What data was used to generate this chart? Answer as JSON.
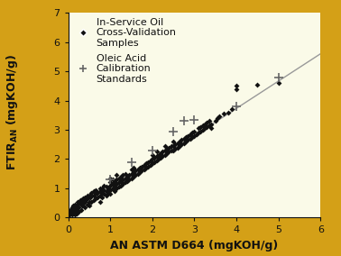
{
  "background_outer": "#D4A017",
  "background_inner": "#FAFAE8",
  "xlabel": "AN ASTM D664 (mgKOH/g)",
  "xlim": [
    0,
    6
  ],
  "ylim": [
    0,
    7
  ],
  "xticks": [
    0,
    1,
    2,
    3,
    4,
    5,
    6
  ],
  "yticks": [
    0,
    1,
    2,
    3,
    4,
    5,
    6,
    7
  ],
  "fit_line_x": [
    0,
    6
  ],
  "fit_line_y": [
    0,
    5.6
  ],
  "scatter_points": [
    [
      0.02,
      0.1
    ],
    [
      0.03,
      0.12
    ],
    [
      0.05,
      0.18
    ],
    [
      0.05,
      0.25
    ],
    [
      0.06,
      0.2
    ],
    [
      0.07,
      0.22
    ],
    [
      0.08,
      0.15
    ],
    [
      0.08,
      0.3
    ],
    [
      0.09,
      0.2
    ],
    [
      0.1,
      0.1
    ],
    [
      0.1,
      0.25
    ],
    [
      0.1,
      0.35
    ],
    [
      0.12,
      0.3
    ],
    [
      0.12,
      0.4
    ],
    [
      0.13,
      0.2
    ],
    [
      0.15,
      0.1
    ],
    [
      0.15,
      0.35
    ],
    [
      0.15,
      0.45
    ],
    [
      0.17,
      0.3
    ],
    [
      0.18,
      0.38
    ],
    [
      0.2,
      0.15
    ],
    [
      0.2,
      0.25
    ],
    [
      0.2,
      0.4
    ],
    [
      0.22,
      0.45
    ],
    [
      0.22,
      0.55
    ],
    [
      0.25,
      0.2
    ],
    [
      0.25,
      0.35
    ],
    [
      0.25,
      0.5
    ],
    [
      0.27,
      0.55
    ],
    [
      0.28,
      0.6
    ],
    [
      0.3,
      0.25
    ],
    [
      0.3,
      0.45
    ],
    [
      0.3,
      0.6
    ],
    [
      0.32,
      0.4
    ],
    [
      0.35,
      0.55
    ],
    [
      0.35,
      0.65
    ],
    [
      0.38,
      0.5
    ],
    [
      0.4,
      0.35
    ],
    [
      0.4,
      0.55
    ],
    [
      0.4,
      0.7
    ],
    [
      0.42,
      0.6
    ],
    [
      0.45,
      0.45
    ],
    [
      0.45,
      0.65
    ],
    [
      0.45,
      0.75
    ],
    [
      0.47,
      0.7
    ],
    [
      0.5,
      0.4
    ],
    [
      0.5,
      0.55
    ],
    [
      0.5,
      0.75
    ],
    [
      0.52,
      0.7
    ],
    [
      0.55,
      0.55
    ],
    [
      0.55,
      0.75
    ],
    [
      0.55,
      0.85
    ],
    [
      0.6,
      0.6
    ],
    [
      0.6,
      0.75
    ],
    [
      0.6,
      0.9
    ],
    [
      0.65,
      0.65
    ],
    [
      0.65,
      0.8
    ],
    [
      0.65,
      0.95
    ],
    [
      0.7,
      0.7
    ],
    [
      0.7,
      0.85
    ],
    [
      0.75,
      0.55
    ],
    [
      0.75,
      0.75
    ],
    [
      0.75,
      0.9
    ],
    [
      0.75,
      1.0
    ],
    [
      0.8,
      0.7
    ],
    [
      0.8,
      0.85
    ],
    [
      0.8,
      1.0
    ],
    [
      0.85,
      0.8
    ],
    [
      0.85,
      0.95
    ],
    [
      0.85,
      1.1
    ],
    [
      0.9,
      0.75
    ],
    [
      0.9,
      0.9
    ],
    [
      0.9,
      1.05
    ],
    [
      0.95,
      0.85
    ],
    [
      0.95,
      1.0
    ],
    [
      1.0,
      0.8
    ],
    [
      1.0,
      0.95
    ],
    [
      1.0,
      1.1
    ],
    [
      1.0,
      1.2
    ],
    [
      1.0,
      1.35
    ],
    [
      1.05,
      1.0
    ],
    [
      1.05,
      1.15
    ],
    [
      1.05,
      1.3
    ],
    [
      1.1,
      0.9
    ],
    [
      1.1,
      1.05
    ],
    [
      1.1,
      1.2
    ],
    [
      1.15,
      1.0
    ],
    [
      1.15,
      1.15
    ],
    [
      1.15,
      1.3
    ],
    [
      1.15,
      1.45
    ],
    [
      1.2,
      1.05
    ],
    [
      1.2,
      1.2
    ],
    [
      1.2,
      1.35
    ],
    [
      1.25,
      1.1
    ],
    [
      1.25,
      1.25
    ],
    [
      1.25,
      1.4
    ],
    [
      1.3,
      1.15
    ],
    [
      1.3,
      1.3
    ],
    [
      1.3,
      1.45
    ],
    [
      1.35,
      1.2
    ],
    [
      1.35,
      1.35
    ],
    [
      1.35,
      1.5
    ],
    [
      1.4,
      1.25
    ],
    [
      1.4,
      1.4
    ],
    [
      1.45,
      1.3
    ],
    [
      1.45,
      1.45
    ],
    [
      1.5,
      1.35
    ],
    [
      1.5,
      1.5
    ],
    [
      1.5,
      1.65
    ],
    [
      1.55,
      1.4
    ],
    [
      1.55,
      1.55
    ],
    [
      1.55,
      1.7
    ],
    [
      1.6,
      1.45
    ],
    [
      1.6,
      1.6
    ],
    [
      1.65,
      1.5
    ],
    [
      1.65,
      1.65
    ],
    [
      1.7,
      1.55
    ],
    [
      1.7,
      1.7
    ],
    [
      1.75,
      1.6
    ],
    [
      1.75,
      1.75
    ],
    [
      1.8,
      1.65
    ],
    [
      1.8,
      1.8
    ],
    [
      1.85,
      1.7
    ],
    [
      1.85,
      1.85
    ],
    [
      1.9,
      1.75
    ],
    [
      1.9,
      1.9
    ],
    [
      1.95,
      1.8
    ],
    [
      1.95,
      1.95
    ],
    [
      2.0,
      1.85
    ],
    [
      2.0,
      2.0
    ],
    [
      2.0,
      2.15
    ],
    [
      2.05,
      1.9
    ],
    [
      2.05,
      2.05
    ],
    [
      2.1,
      1.95
    ],
    [
      2.1,
      2.1
    ],
    [
      2.1,
      2.25
    ],
    [
      2.15,
      2.0
    ],
    [
      2.15,
      2.15
    ],
    [
      2.2,
      2.05
    ],
    [
      2.2,
      2.2
    ],
    [
      2.25,
      2.1
    ],
    [
      2.25,
      2.25
    ],
    [
      2.3,
      2.15
    ],
    [
      2.3,
      2.3
    ],
    [
      2.3,
      2.45
    ],
    [
      2.35,
      2.2
    ],
    [
      2.35,
      2.35
    ],
    [
      2.4,
      2.25
    ],
    [
      2.4,
      2.4
    ],
    [
      2.45,
      2.3
    ],
    [
      2.45,
      2.45
    ],
    [
      2.5,
      2.3
    ],
    [
      2.5,
      2.45
    ],
    [
      2.5,
      2.6
    ],
    [
      2.55,
      2.35
    ],
    [
      2.55,
      2.5
    ],
    [
      2.6,
      2.4
    ],
    [
      2.6,
      2.55
    ],
    [
      2.65,
      2.45
    ],
    [
      2.65,
      2.6
    ],
    [
      2.7,
      2.5
    ],
    [
      2.7,
      2.65
    ],
    [
      2.75,
      2.55
    ],
    [
      2.75,
      2.7
    ],
    [
      2.8,
      2.6
    ],
    [
      2.8,
      2.75
    ],
    [
      2.85,
      2.65
    ],
    [
      2.85,
      2.8
    ],
    [
      2.9,
      2.7
    ],
    [
      2.9,
      2.85
    ],
    [
      2.95,
      2.75
    ],
    [
      2.95,
      2.9
    ],
    [
      3.0,
      2.8
    ],
    [
      3.0,
      2.95
    ],
    [
      3.05,
      2.85
    ],
    [
      3.1,
      2.9
    ],
    [
      3.1,
      3.05
    ],
    [
      3.15,
      2.95
    ],
    [
      3.15,
      3.1
    ],
    [
      3.2,
      3.0
    ],
    [
      3.2,
      3.15
    ],
    [
      3.25,
      3.05
    ],
    [
      3.25,
      3.2
    ],
    [
      3.3,
      3.1
    ],
    [
      3.3,
      3.25
    ],
    [
      3.35,
      3.15
    ],
    [
      3.35,
      3.3
    ],
    [
      3.4,
      3.05
    ],
    [
      3.4,
      3.2
    ],
    [
      3.5,
      3.3
    ],
    [
      3.55,
      3.4
    ],
    [
      3.6,
      3.45
    ],
    [
      3.7,
      3.55
    ],
    [
      3.8,
      3.6
    ],
    [
      3.9,
      3.7
    ],
    [
      4.0,
      4.4
    ],
    [
      4.0,
      4.5
    ],
    [
      4.5,
      4.55
    ],
    [
      5.0,
      4.6
    ]
  ],
  "plus_points": [
    [
      1.0,
      1.3
    ],
    [
      1.5,
      1.9
    ],
    [
      2.0,
      2.3
    ],
    [
      2.5,
      2.95
    ],
    [
      2.75,
      3.3
    ],
    [
      3.0,
      3.35
    ],
    [
      4.0,
      3.8
    ],
    [
      5.0,
      4.8
    ]
  ],
  "scatter_color": "#111111",
  "plus_color": "#666666",
  "line_color": "#999999",
  "legend1_text": "In-Service Oil\nCross-Validation\nSamples",
  "legend2_text": "Oleic Acid\nCalibration\nStandards",
  "font_color": "#111111",
  "axis_label_fontsize": 9,
  "tick_fontsize": 8,
  "legend_fontsize": 8
}
